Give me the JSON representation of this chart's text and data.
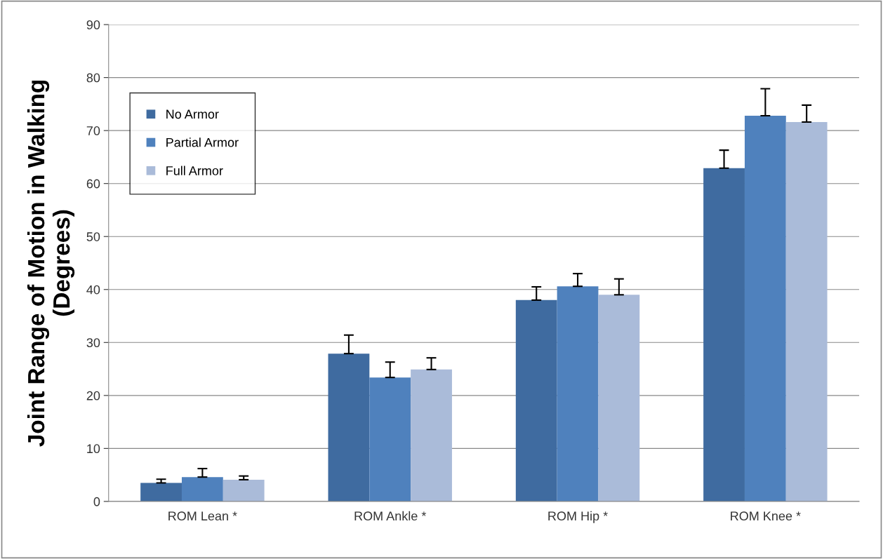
{
  "chart_data": {
    "type": "bar",
    "ylabel": "Joint Range of Motion in Walking\n(Degrees)",
    "categories": [
      "ROM Lean *",
      "ROM Ankle *",
      "ROM Hip *",
      "ROM Knee *"
    ],
    "series": [
      {
        "name": "No Armor",
        "color": "#3f6ba0",
        "values": [
          3.5,
          27.9,
          38.0,
          62.9
        ],
        "errors": [
          [
            3.5,
            4.2
          ],
          [
            27.9,
            31.4
          ],
          [
            38.0,
            40.5
          ],
          [
            62.9,
            66.3
          ]
        ]
      },
      {
        "name": "Partial Armor",
        "color": "#4f81bd",
        "values": [
          4.6,
          23.4,
          40.6,
          72.8
        ],
        "errors": [
          [
            4.6,
            6.2
          ],
          [
            23.4,
            26.3
          ],
          [
            40.6,
            43.0
          ],
          [
            72.8,
            77.9
          ]
        ]
      },
      {
        "name": "Full Armor",
        "color": "#aabbd9",
        "values": [
          4.1,
          24.9,
          39.0,
          71.6
        ],
        "errors": [
          [
            4.1,
            4.8
          ],
          [
            24.9,
            27.1
          ],
          [
            39.0,
            42.0
          ],
          [
            71.6,
            74.8
          ]
        ]
      }
    ],
    "ylim": [
      0,
      90
    ],
    "yticks": [
      0,
      10,
      20,
      30,
      40,
      50,
      60,
      70,
      80,
      90
    ],
    "grid": "y",
    "legend": "top left"
  }
}
